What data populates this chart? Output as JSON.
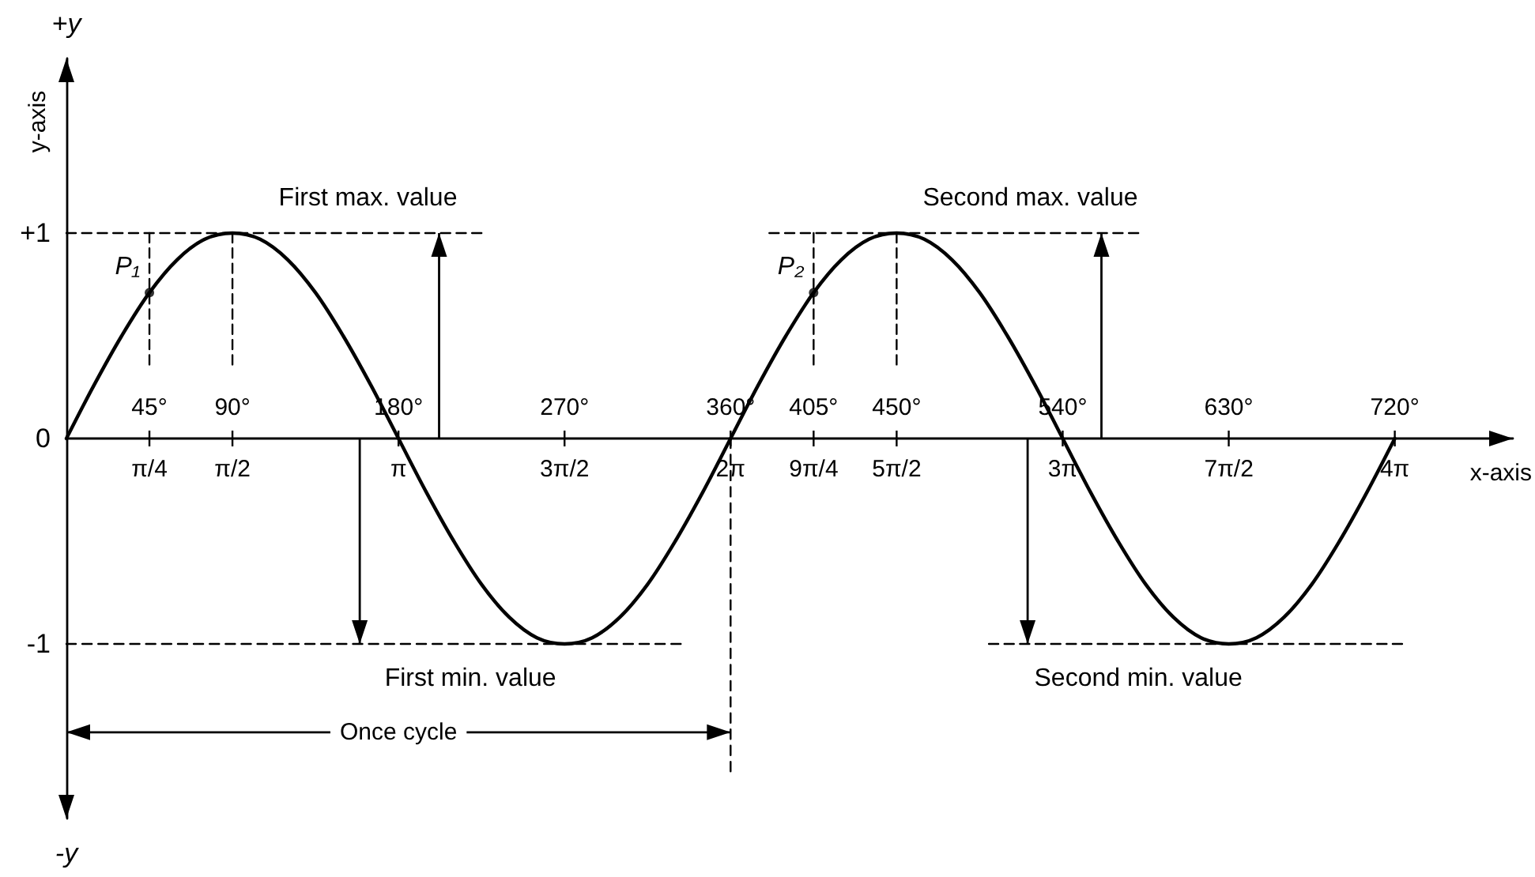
{
  "chart_data": {
    "type": "line",
    "xlabel": "x-axis",
    "ylabel": "y-axis",
    "xlim": [
      0,
      784
    ],
    "ylim": [
      -1.85,
      1.85
    ],
    "xticks": [
      {
        "value": 45,
        "label": "45°"
      },
      {
        "value": 90,
        "label": "90°"
      },
      {
        "value": 180,
        "label": "180°"
      },
      {
        "value": 270,
        "label": "270°"
      },
      {
        "value": 360,
        "label": "360°"
      },
      {
        "value": 405,
        "label": "405°"
      },
      {
        "value": 450,
        "label": "450°"
      },
      {
        "value": 540,
        "label": "540°"
      },
      {
        "value": 630,
        "label": "630°"
      },
      {
        "value": 720,
        "label": "720°"
      }
    ],
    "x2lim": [
      0,
      13.683
    ],
    "x2ticks": [
      {
        "value": 0.785,
        "label": "π/4"
      },
      {
        "value": 1.571,
        "label": "π/2"
      },
      {
        "value": 3.142,
        "label": "π"
      },
      {
        "value": 4.712,
        "label": "3π/2"
      },
      {
        "value": 6.283,
        "label": "2π"
      },
      {
        "value": 7.069,
        "label": "9π/4"
      },
      {
        "value": 7.854,
        "label": "5π/2"
      },
      {
        "value": 9.425,
        "label": "3π"
      },
      {
        "value": 10.996,
        "label": "7π/2"
      },
      {
        "value": 12.566,
        "label": "4π"
      }
    ],
    "yticks": [
      {
        "value": 1,
        "label": "+1"
      },
      0,
      -1
    ],
    "series": [
      {
        "color": "#000000",
        "line_style": "solid",
        "x": [
          0,
          15,
          30,
          45,
          60,
          75,
          90,
          105,
          120,
          135,
          150,
          165,
          180,
          195,
          210,
          225,
          240,
          255,
          270,
          285,
          300,
          315,
          330,
          345,
          360,
          375,
          390,
          405,
          420,
          435,
          450,
          465,
          480,
          495,
          510,
          525,
          540,
          555,
          570,
          585,
          600,
          615,
          630,
          645,
          660,
          675,
          690,
          705,
          720
        ],
        "values": [
          0,
          0.26,
          0.5,
          0.71,
          0.87,
          0.97,
          1,
          0.97,
          0.87,
          0.71,
          0.5,
          0.26,
          0,
          -0.26,
          -0.5,
          -0.71,
          -0.87,
          -0.97,
          -1,
          -0.97,
          -0.87,
          -0.71,
          -0.5,
          -0.26,
          0,
          0.26,
          0.5,
          0.71,
          0.87,
          0.97,
          1,
          0.97,
          0.87,
          0.71,
          0.5,
          0.26,
          0,
          -0.26,
          -0.5,
          -0.71,
          -0.87,
          -0.97,
          -1,
          -0.97,
          -0.87,
          -0.71,
          -0.5,
          -0.26,
          0
        ]
      },
      {
        "color": "#000000",
        "line_style": "dashed",
        "x": [
          0,
          225
        ],
        "values": [
          1,
          1
        ]
      },
      {
        "color": "#000000",
        "line_style": "dashed",
        "x": [
          381,
          581
        ],
        "values": [
          1,
          1
        ]
      },
      {
        "color": "#000000",
        "line_style": "dashed",
        "x": [
          0,
          333
        ],
        "values": [
          -1,
          -1
        ]
      },
      {
        "color": "#000000",
        "line_style": "dashed",
        "x": [
          500,
          724
        ],
        "values": [
          -1,
          -1
        ]
      },
      {
        "color": "#000000",
        "line_style": "dashed",
        "x": [
          45,
          45
        ],
        "values": [
          1,
          0.36
        ]
      },
      {
        "color": "#000000",
        "line_style": "dashed",
        "x": [
          90,
          90
        ],
        "values": [
          1,
          0.36
        ]
      },
      {
        "color": "#000000",
        "line_style": "dashed",
        "x": [
          405,
          405
        ],
        "values": [
          1,
          0.36
        ]
      },
      {
        "color": "#000000",
        "line_style": "dashed",
        "x": [
          450,
          450
        ],
        "values": [
          1,
          0.36
        ]
      },
      {
        "color": "#000000",
        "line_style": "dashed",
        "x": [
          360,
          360
        ],
        "values": [
          0,
          -1.62
        ]
      }
    ],
    "annotations": [
      "+y",
      "-y",
      {
        "text": "First max. value",
        "x": 202,
        "y": 1
      },
      {
        "text": "Second max. value",
        "x": 561,
        "y": 1
      },
      {
        "text": "First min. value",
        "x": 159,
        "y": -1
      },
      {
        "text": "Second min. value",
        "x": 521,
        "y": -1
      },
      {
        "text": "P₁",
        "x": 45,
        "y": 0.71
      },
      {
        "text": "P₂",
        "x": 405,
        "y": 0.71
      },
      {
        "text": "Once cycle",
        "x": 360,
        "y": -1.43
      }
    ]
  }
}
